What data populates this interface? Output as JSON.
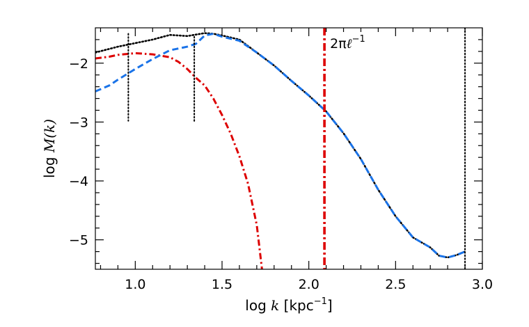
{
  "chart_data": {
    "type": "line",
    "xlabel": {
      "pre": "log ",
      "var": "k",
      "post": " [kpc",
      "sup": "−1",
      "close": "]"
    },
    "ylabel": {
      "pre": "log ",
      "var": "M(k)"
    },
    "xlim": [
      0.77,
      3.0
    ],
    "ylim": [
      -5.5,
      -1.4
    ],
    "xticks": [
      1.0,
      1.5,
      2.0,
      2.5,
      3.0
    ],
    "xtick_labels": [
      "1.0",
      "1.5",
      "2.0",
      "2.5",
      "3.0"
    ],
    "yticks": [
      -2,
      -3,
      -4,
      -5
    ],
    "ytick_labels": [
      "−2",
      "−3",
      "−4",
      "−5"
    ],
    "grid": false,
    "legend": "none",
    "annotation": {
      "text_pre": "2π",
      "text_var": "ℓ",
      "text_sup": "−1",
      "x": 2.09,
      "y": -1.67
    },
    "colors": {
      "black": "#000000",
      "red": "#dd0000",
      "blue": "#1a73e8"
    },
    "series": [
      {
        "color": "black",
        "dash": "dotted",
        "x": [
          0.77,
          0.9,
          1.0,
          1.1,
          1.2,
          1.3,
          1.4,
          1.45,
          1.5,
          1.6,
          1.7,
          1.8,
          1.9,
          2.0,
          2.1,
          2.2,
          2.3,
          2.4,
          2.5,
          2.6,
          2.7,
          2.75,
          2.8,
          2.85,
          2.9
        ],
        "y": [
          -1.82,
          -1.72,
          -1.66,
          -1.6,
          -1.52,
          -1.54,
          -1.49,
          -1.5,
          -1.53,
          -1.6,
          -1.82,
          -2.04,
          -2.3,
          -2.55,
          -2.82,
          -3.19,
          -3.63,
          -4.15,
          -4.6,
          -4.96,
          -5.13,
          -5.27,
          -5.3,
          -5.26,
          -5.2
        ]
      },
      {
        "color": "red",
        "dash": "dashdot",
        "x": [
          0.77,
          0.85,
          0.9,
          1.0,
          1.1,
          1.2,
          1.25,
          1.3,
          1.35,
          1.4,
          1.45,
          1.5,
          1.55,
          1.6,
          1.65,
          1.7,
          1.73
        ],
        "y": [
          -1.92,
          -1.89,
          -1.86,
          -1.83,
          -1.85,
          -1.9,
          -1.98,
          -2.1,
          -2.25,
          -2.38,
          -2.6,
          -2.88,
          -3.2,
          -3.58,
          -4.05,
          -4.75,
          -5.5
        ]
      },
      {
        "color": "blue",
        "dash": "dashed",
        "x": [
          0.77,
          0.85,
          0.9,
          1.0,
          1.1,
          1.2,
          1.3,
          1.35,
          1.4,
          1.45,
          1.5,
          1.6,
          1.7,
          1.8,
          1.9,
          2.0,
          2.1,
          2.2,
          2.3,
          2.4,
          2.5,
          2.6,
          2.7,
          2.75,
          2.8,
          2.85,
          2.9
        ],
        "y": [
          -2.48,
          -2.38,
          -2.28,
          -2.1,
          -1.93,
          -1.78,
          -1.72,
          -1.67,
          -1.53,
          -1.5,
          -1.55,
          -1.62,
          -1.82,
          -2.04,
          -2.3,
          -2.55,
          -2.82,
          -3.19,
          -3.63,
          -4.15,
          -4.6,
          -4.96,
          -5.13,
          -5.27,
          -5.3,
          -5.26,
          -5.2
        ]
      }
    ],
    "vlines": [
      {
        "x": 0.96,
        "y0": -1.5,
        "y1": -2.98,
        "color": "black",
        "dash": "dotted"
      },
      {
        "x": 1.34,
        "y0": -1.55,
        "y1": -3.0,
        "color": "black",
        "dash": "dotted"
      },
      {
        "x": 2.09,
        "y0": -1.4,
        "y1": -5.5,
        "color": "red",
        "dash": "dashdot",
        "thick": true
      },
      {
        "x": 2.9,
        "y0": -1.4,
        "y1": -5.5,
        "color": "black",
        "dash": "dotted"
      }
    ]
  }
}
